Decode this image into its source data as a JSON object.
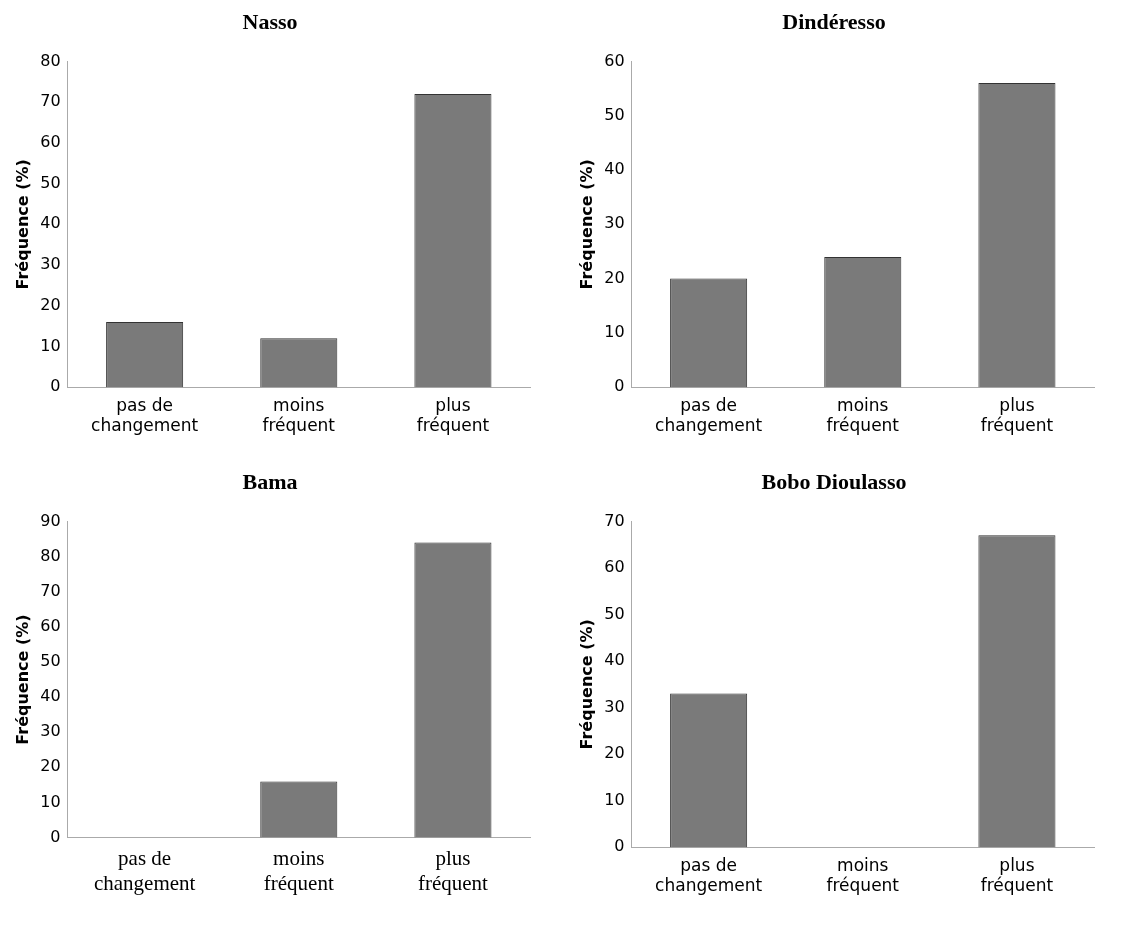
{
  "chart_data": [
    {
      "type": "bar",
      "title": "Nasso",
      "ylabel": "Fréquence (%)",
      "categories": [
        "pas de changement",
        "moins fréquent",
        "plus fréquent"
      ],
      "values": [
        16,
        12,
        72
      ],
      "color": "#7a7a7a",
      "ylim": [
        0,
        80
      ],
      "yticks": [
        0,
        10,
        20,
        30,
        40,
        50,
        60,
        70,
        80
      ],
      "grid": false,
      "legend": false
    },
    {
      "type": "bar",
      "title": "Dindéresso",
      "ylabel": "Fréquence (%)",
      "categories": [
        "pas de changement",
        "moins fréquent",
        "plus fréquent"
      ],
      "values": [
        20,
        24,
        56
      ],
      "color": "#7a7a7a",
      "ylim": [
        0,
        60
      ],
      "yticks": [
        0,
        10,
        20,
        30,
        40,
        50,
        60
      ],
      "grid": false,
      "legend": false
    },
    {
      "type": "bar",
      "title": "Bama",
      "ylabel": "Fréquence (%)",
      "categories": [
        "pas de changement",
        "moins fréquent",
        "plus fréquent"
      ],
      "values": [
        0,
        16,
        84
      ],
      "color": "#7a7a7a",
      "ylim": [
        0,
        90
      ],
      "yticks": [
        0,
        10,
        20,
        30,
        40,
        50,
        60,
        70,
        80,
        90
      ],
      "grid": false,
      "legend": false
    },
    {
      "type": "bar",
      "title": "Bobo Dioulasso",
      "ylabel": "Fréquence (%)",
      "categories": [
        "pas de changement",
        "moins fréquent",
        "plus fréquent"
      ],
      "values": [
        33,
        0,
        67
      ],
      "color": "#7a7a7a",
      "ylim": [
        0,
        70
      ],
      "yticks": [
        0,
        10,
        20,
        30,
        40,
        50,
        60,
        70
      ],
      "grid": false,
      "legend": false
    }
  ]
}
